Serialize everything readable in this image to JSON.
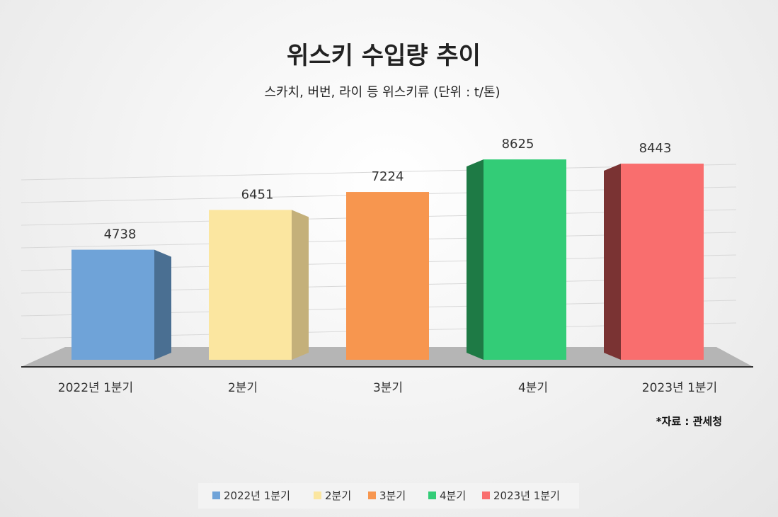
{
  "chart_data": {
    "type": "bar",
    "title": "위스키 수입량 추이",
    "subtitle": "스카치, 버번, 라이 등 위스키류 (단위 : t/톤)",
    "categories": [
      "2022년 1분기",
      "2분기",
      "3분기",
      "4분기",
      "2023년 1분기"
    ],
    "values": [
      4738,
      6451,
      7224,
      8625,
      8443
    ],
    "colors": [
      "#6fa3d8",
      "#fbe6a0",
      "#f7964f",
      "#33cc77",
      "#f96e6e"
    ],
    "side_colors": [
      "#4a6f92",
      "#c4b07a",
      "#b86a33",
      "#1e7a45",
      "#7a3333"
    ],
    "ylim": [
      0,
      9000
    ],
    "grid": true,
    "legend_position": "bottom",
    "source": "*자료 : 관세청",
    "bar_style": "3d-column"
  }
}
